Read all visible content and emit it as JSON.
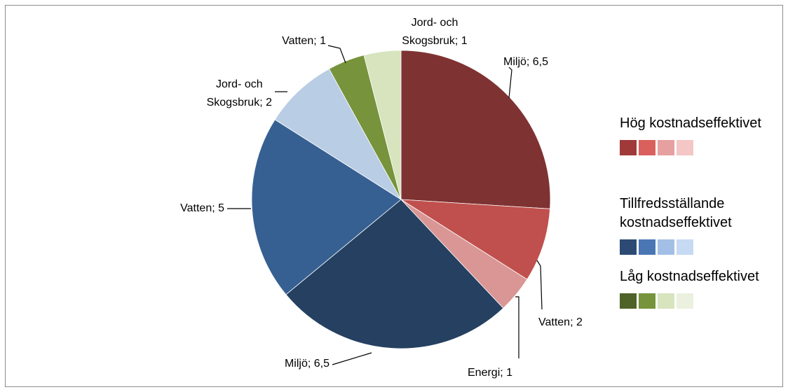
{
  "chart_data": {
    "type": "pie",
    "values": [
      6.5,
      2,
      1,
      6.5,
      5,
      2,
      1,
      1
    ],
    "value_labels": [
      "Miljö; 6,5",
      "Vatten; 2",
      "Energi; 1",
      "Miljö; 6,5",
      "Vatten; 5",
      "Jord- och\nSkogsbruk; 2",
      "Vatten; 1",
      "Jord- och\nSkogsbruk; 1"
    ],
    "colors": [
      "#7f3232",
      "#c0504d",
      "#d99694",
      "#254061",
      "#376092",
      "#b9cde5",
      "#77933c",
      "#d7e4bd"
    ],
    "legend": {
      "position": "right",
      "groups": [
        {
          "name": "Hög kostnadseffektivet",
          "colors": [
            "#a03a3a",
            "#d9605c",
            "#e6a0a0",
            "#f4c6c6"
          ]
        },
        {
          "name": "Tillfredsställande kostnadseffektivet",
          "colors": [
            "#2c4a74",
            "#4a77b4",
            "#a3bfe6",
            "#c6daf3"
          ]
        },
        {
          "name": "Låg kostnadseffektivet",
          "colors": [
            "#4f6228",
            "#77933c",
            "#d7e4bd",
            "#ebf1de"
          ]
        }
      ]
    }
  }
}
